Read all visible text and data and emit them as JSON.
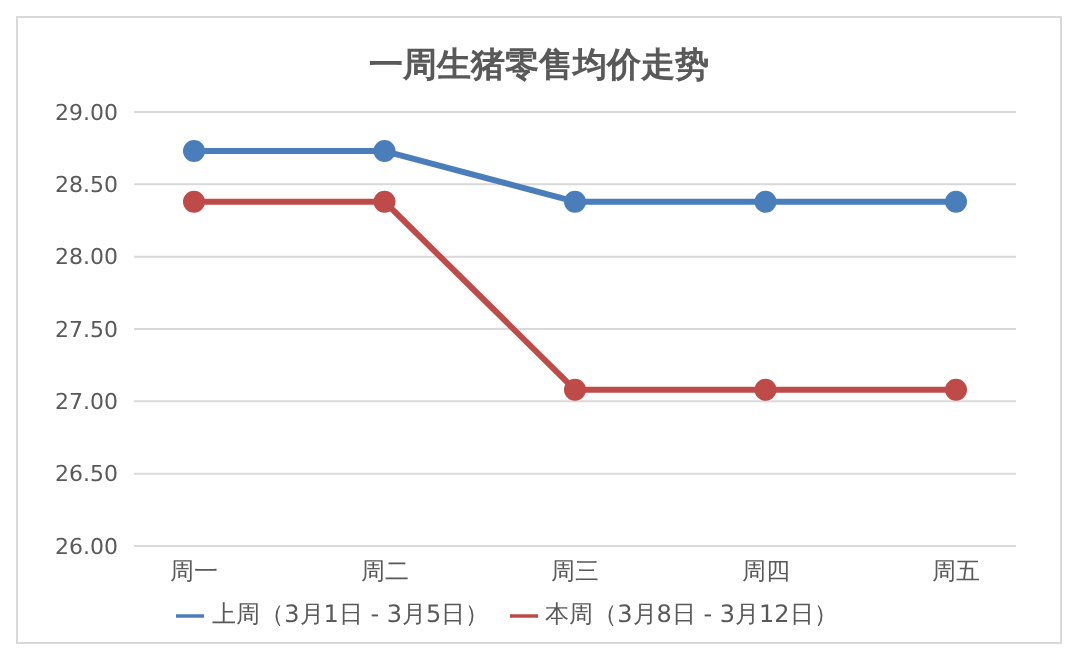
{
  "chart_data": {
    "type": "line",
    "title": "一周生猪零售均价走势",
    "categories": [
      "周一",
      "周二",
      "周三",
      "周四",
      "周五"
    ],
    "series": [
      {
        "name": "上周（3月1日 - 3月5日）",
        "color": "#4a7ebb",
        "values": [
          28.73,
          28.73,
          28.38,
          28.38,
          28.38
        ]
      },
      {
        "name": "本周（3月8日 - 3月12日）",
        "color": "#be4b48",
        "values": [
          28.38,
          28.38,
          27.08,
          27.08,
          27.08
        ]
      }
    ],
    "ylim": [
      26,
      29
    ],
    "yticks": [
      {
        "value": 26,
        "label": "26.00"
      },
      {
        "value": 26.5,
        "label": "26.50"
      },
      {
        "value": 27,
        "label": "27.00"
      },
      {
        "value": 27.5,
        "label": "27.50"
      },
      {
        "value": 28,
        "label": "28.00"
      },
      {
        "value": 28.5,
        "label": "28.50"
      },
      {
        "value": 29,
        "label": "29.00"
      }
    ],
    "grid": "y",
    "legend": "bottom",
    "marker": "circle",
    "line_style": "solid"
  }
}
